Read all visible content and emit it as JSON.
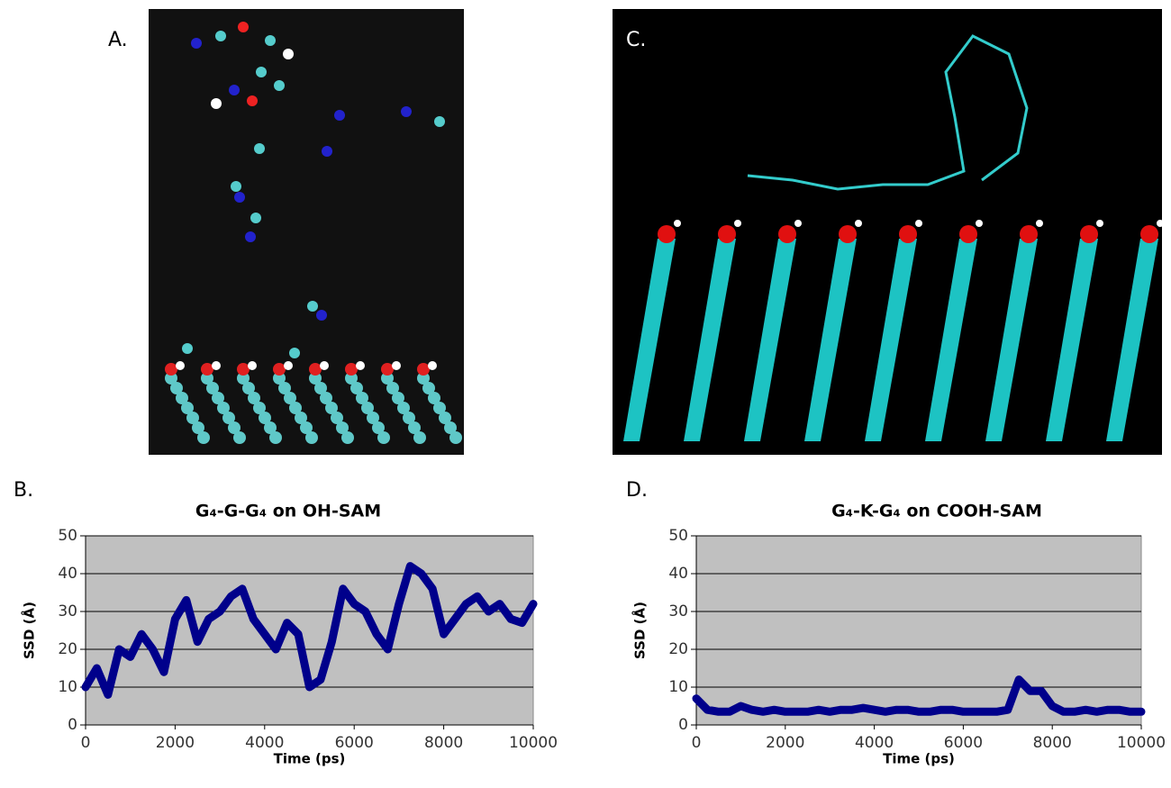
{
  "panel_labels": [
    "A.",
    "B.",
    "C.",
    "D."
  ],
  "chart_data": [
    {
      "type": "line",
      "title": "G₄-G-G₄ on OH-SAM",
      "xlabel": "Time (ps)",
      "ylabel": "SSD (Å)",
      "x": [
        0,
        250,
        500,
        750,
        1000,
        1250,
        1500,
        1750,
        2000,
        2250,
        2500,
        2750,
        3000,
        3250,
        3500,
        3750,
        4000,
        4250,
        4500,
        4750,
        5000,
        5250,
        5500,
        5750,
        6000,
        6250,
        6500,
        6750,
        7000,
        7250,
        7500,
        7750,
        8000,
        8250,
        8500,
        8750,
        9000,
        9250,
        9500,
        9750,
        10000
      ],
      "values": [
        10,
        15,
        8,
        20,
        18,
        24,
        20,
        14,
        28,
        33,
        22,
        28,
        30,
        34,
        36,
        28,
        24,
        20,
        27,
        24,
        10,
        12,
        22,
        36,
        32,
        30,
        24,
        20,
        32,
        42,
        40,
        36,
        24,
        28,
        32,
        34,
        30,
        32,
        28,
        27,
        32
      ],
      "color": "#00008b",
      "xlim": [
        0,
        10000
      ],
      "ylim": [
        0,
        50
      ],
      "xticks": [
        0,
        2000,
        4000,
        6000,
        8000,
        10000
      ],
      "yticks": [
        0,
        10,
        20,
        30,
        40,
        50
      ],
      "grid": true
    },
    {
      "type": "line",
      "title": "G₄-K-G₄ on COOH-SAM",
      "xlabel": "Time (ps)",
      "ylabel": "SSD (Å)",
      "x": [
        0,
        250,
        500,
        750,
        1000,
        1250,
        1500,
        1750,
        2000,
        2250,
        2500,
        2750,
        3000,
        3250,
        3500,
        3750,
        4000,
        4250,
        4500,
        4750,
        5000,
        5250,
        5500,
        5750,
        6000,
        6250,
        6500,
        6750,
        7000,
        7250,
        7500,
        7750,
        8000,
        8250,
        8500,
        8750,
        9000,
        9250,
        9500,
        9750,
        10000
      ],
      "values": [
        7,
        4,
        3.5,
        3.5,
        5,
        4,
        3.5,
        4,
        3.5,
        3.5,
        3.5,
        4,
        3.5,
        4,
        4,
        4.5,
        4,
        3.5,
        4,
        4,
        3.5,
        3.5,
        4,
        4,
        3.5,
        3.5,
        3.5,
        3.5,
        4,
        12,
        9,
        9,
        5,
        3.5,
        3.5,
        4,
        3.5,
        4,
        4,
        3.5,
        3.5
      ],
      "color": "#00008b",
      "xlim": [
        0,
        10000
      ],
      "ylim": [
        0,
        50
      ],
      "xticks": [
        0,
        2000,
        4000,
        6000,
        8000,
        10000
      ],
      "yticks": [
        0,
        10,
        20,
        30,
        40,
        50
      ],
      "grid": true
    }
  ]
}
